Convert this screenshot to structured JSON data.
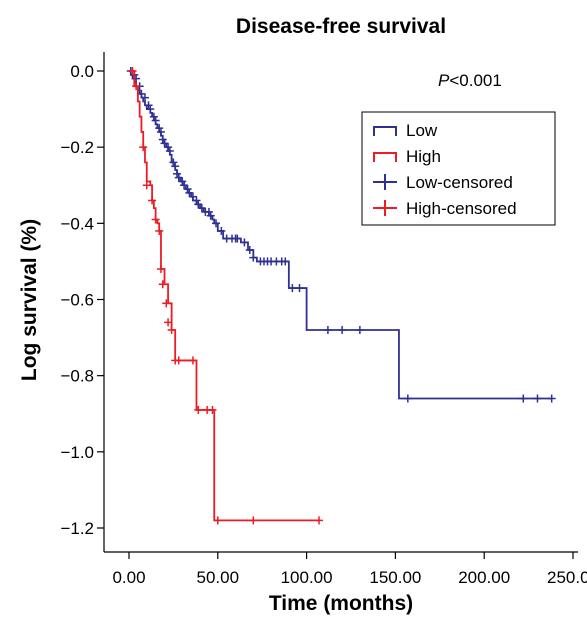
{
  "chart_data": {
    "type": "line",
    "title": "Disease-free survival",
    "xlabel": "Time (months)",
    "ylabel": "Log survival (%)",
    "xlim": [
      -12,
      250
    ],
    "ylim": [
      -1.3,
      0.05
    ],
    "x_ticks": [
      "0.00",
      "50.00",
      "100.00",
      "150.00",
      "200.00",
      "250.00"
    ],
    "x_tick_values": [
      0,
      50,
      100,
      150,
      200,
      250
    ],
    "y_ticks": [
      "0.0",
      "−0.2",
      "−0.4",
      "−0.6",
      "−0.8",
      "−1.0",
      "−1.2"
    ],
    "y_tick_values": [
      0,
      -0.2,
      -0.4,
      -0.6,
      -0.8,
      -1.0,
      -1.2
    ],
    "annotation_p": "P",
    "annotation_rest": "<0.001",
    "legend_position": "top-right",
    "legend": [
      "Low",
      "High",
      "Low-censored",
      "High-censored"
    ],
    "series": [
      {
        "name": "Low",
        "color": "#2e3192",
        "step_points": [
          [
            0,
            0
          ],
          [
            1,
            -0.01
          ],
          [
            2,
            -0.02
          ],
          [
            3,
            -0.03
          ],
          [
            4,
            -0.04
          ],
          [
            5,
            -0.05
          ],
          [
            6,
            -0.06
          ],
          [
            7,
            -0.07
          ],
          [
            8,
            -0.08
          ],
          [
            9,
            -0.09
          ],
          [
            10,
            -0.1
          ],
          [
            12,
            -0.11
          ],
          [
            13,
            -0.12
          ],
          [
            14,
            -0.13
          ],
          [
            15,
            -0.14
          ],
          [
            16,
            -0.15
          ],
          [
            17,
            -0.16
          ],
          [
            18,
            -0.17
          ],
          [
            19,
            -0.18
          ],
          [
            20,
            -0.19
          ],
          [
            21,
            -0.2
          ],
          [
            22,
            -0.21
          ],
          [
            23,
            -0.22
          ],
          [
            24,
            -0.24
          ],
          [
            25,
            -0.25
          ],
          [
            26,
            -0.26
          ],
          [
            27,
            -0.27
          ],
          [
            28,
            -0.28
          ],
          [
            29,
            -0.29
          ],
          [
            31,
            -0.3
          ],
          [
            32,
            -0.31
          ],
          [
            33,
            -0.32
          ],
          [
            35,
            -0.33
          ],
          [
            36,
            -0.34
          ],
          [
            38,
            -0.35
          ],
          [
            40,
            -0.36
          ],
          [
            42,
            -0.37
          ],
          [
            45,
            -0.38
          ],
          [
            47,
            -0.39
          ],
          [
            48,
            -0.4
          ],
          [
            50,
            -0.42
          ],
          [
            53,
            -0.44
          ],
          [
            63,
            -0.45
          ],
          [
            67,
            -0.47
          ],
          [
            70,
            -0.49
          ],
          [
            72,
            -0.5
          ],
          [
            90,
            -0.57
          ],
          [
            100,
            -0.68
          ],
          [
            152,
            -0.86
          ],
          [
            238,
            -0.86
          ]
        ],
        "censored": [
          [
            1,
            0
          ],
          [
            3,
            -0.01
          ],
          [
            4,
            -0.02
          ],
          [
            6,
            -0.04
          ],
          [
            7,
            -0.06
          ],
          [
            9,
            -0.07
          ],
          [
            11,
            -0.09
          ],
          [
            12,
            -0.1
          ],
          [
            14,
            -0.12
          ],
          [
            15,
            -0.13
          ],
          [
            17,
            -0.15
          ],
          [
            18,
            -0.16
          ],
          [
            19,
            -0.18
          ],
          [
            20,
            -0.19
          ],
          [
            22,
            -0.2
          ],
          [
            23,
            -0.21
          ],
          [
            25,
            -0.24
          ],
          [
            26,
            -0.25
          ],
          [
            27,
            -0.27
          ],
          [
            28,
            -0.28
          ],
          [
            30,
            -0.29
          ],
          [
            31,
            -0.3
          ],
          [
            33,
            -0.31
          ],
          [
            34,
            -0.32
          ],
          [
            36,
            -0.33
          ],
          [
            38,
            -0.34
          ],
          [
            39,
            -0.35
          ],
          [
            41,
            -0.36
          ],
          [
            43,
            -0.37
          ],
          [
            45,
            -0.37
          ],
          [
            46,
            -0.38
          ],
          [
            49,
            -0.4
          ],
          [
            52,
            -0.42
          ],
          [
            55,
            -0.44
          ],
          [
            58,
            -0.44
          ],
          [
            60,
            -0.44
          ],
          [
            61,
            -0.44
          ],
          [
            65,
            -0.45
          ],
          [
            68,
            -0.47
          ],
          [
            70,
            -0.49
          ],
          [
            74,
            -0.5
          ],
          [
            76,
            -0.5
          ],
          [
            78,
            -0.5
          ],
          [
            80,
            -0.5
          ],
          [
            83,
            -0.5
          ],
          [
            86,
            -0.5
          ],
          [
            88,
            -0.5
          ],
          [
            92,
            -0.57
          ],
          [
            96,
            -0.57
          ],
          [
            112,
            -0.68
          ],
          [
            120,
            -0.68
          ],
          [
            130,
            -0.68
          ],
          [
            157,
            -0.86
          ],
          [
            222,
            -0.86
          ],
          [
            230,
            -0.86
          ],
          [
            238,
            -0.86
          ]
        ]
      },
      {
        "name": "High",
        "color": "#ed1c24",
        "step_points": [
          [
            0,
            0
          ],
          [
            3,
            -0.04
          ],
          [
            5,
            -0.08
          ],
          [
            6,
            -0.12
          ],
          [
            7,
            -0.16
          ],
          [
            8,
            -0.2
          ],
          [
            9,
            -0.24
          ],
          [
            10,
            -0.29
          ],
          [
            12,
            -0.3
          ],
          [
            13,
            -0.34
          ],
          [
            14,
            -0.36
          ],
          [
            15,
            -0.39
          ],
          [
            16,
            -0.4
          ],
          [
            17,
            -0.42
          ],
          [
            18,
            -0.52
          ],
          [
            20,
            -0.56
          ],
          [
            22,
            -0.61
          ],
          [
            24,
            -0.68
          ],
          [
            26,
            -0.76
          ],
          [
            38,
            -0.89
          ],
          [
            48,
            -1.18
          ],
          [
            107,
            -1.18
          ]
        ],
        "censored": [
          [
            2,
            0
          ],
          [
            4,
            -0.04
          ],
          [
            8,
            -0.2
          ],
          [
            10,
            -0.3
          ],
          [
            13,
            -0.34
          ],
          [
            15,
            -0.39
          ],
          [
            17,
            -0.42
          ],
          [
            18,
            -0.52
          ],
          [
            19,
            -0.56
          ],
          [
            21,
            -0.61
          ],
          [
            22,
            -0.66
          ],
          [
            24,
            -0.68
          ],
          [
            26,
            -0.76
          ],
          [
            28,
            -0.76
          ],
          [
            36,
            -0.76
          ],
          [
            39,
            -0.89
          ],
          [
            44,
            -0.89
          ],
          [
            47,
            -0.89
          ],
          [
            50,
            -1.18
          ],
          [
            70,
            -1.18
          ],
          [
            107,
            -1.18
          ]
        ]
      }
    ]
  }
}
